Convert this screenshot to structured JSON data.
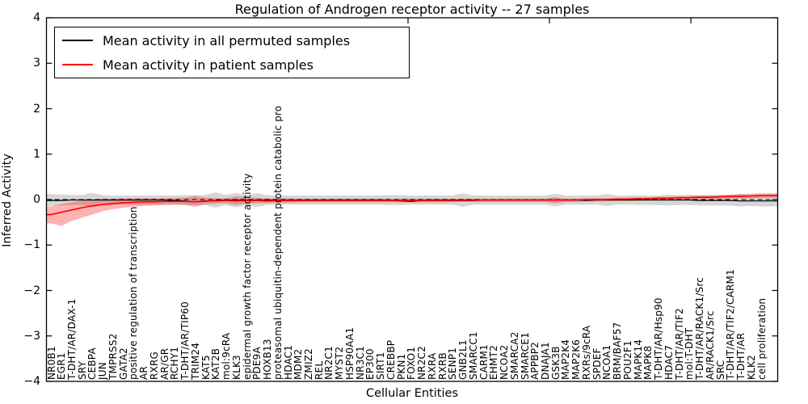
{
  "title": "Regulation of Androgen receptor activity -- 27 samples",
  "legend": {
    "items": [
      {
        "label": "Mean activity in all permuted samples",
        "color": "#000000"
      },
      {
        "label": "Mean activity in patient samples",
        "color": "#ff0000"
      }
    ]
  },
  "chart_data": {
    "type": "line",
    "title": "Regulation of Androgen receptor activity -- 27 samples",
    "xlabel": "Cellular Entities",
    "ylabel": "Inferred Activity",
    "ylim": [
      -4,
      4
    ],
    "yticks": [
      -4,
      -3,
      -2,
      -1,
      0,
      1,
      2,
      3,
      4
    ],
    "grid": false,
    "legend_position": "upper left",
    "background": "#ffffff",
    "zero_line": {
      "style": "dashed",
      "color": "#000000"
    },
    "categories": [
      "NR0B1",
      "EGR1",
      "T-DHT/AR/DAX-1",
      "SRY",
      "CEBPA",
      "JUN",
      "TMPRSS2",
      "GATA2",
      "positive regulation of transcription",
      "AR",
      "RXRG",
      "AR/GR",
      "RCHY1",
      "T-DHT/AR/TIP60",
      "TRIM24",
      "KAT5",
      "KAT2B",
      "mol:9cRA",
      "KLK3",
      "epidermal growth factor receptor activity",
      "PDE9A",
      "HOXB13",
      "proteasomal ubiquitin-dependent protein catabolic pro",
      "HDAC1",
      "MDM2",
      "ZMIZ2",
      "REL",
      "NR2C1",
      "MYST2",
      "HSP90AA1",
      "NR3C1",
      "EP300",
      "SIRT1",
      "CREBBP",
      "PKN1",
      "FOXO1",
      "NR2C2",
      "RXRA",
      "RXRB",
      "SENP1",
      "GNB2L1",
      "SMARCC1",
      "CARM1",
      "EHMT2",
      "NCOA2",
      "SMARCA2",
      "SMARCE1",
      "APPBP2",
      "DNAJA1",
      "GSK3B",
      "MAP2K4",
      "MAP2K6",
      "RXRs/9cRA",
      "SPDEF",
      "NCOA1",
      "BRM/BAF57",
      "POU2F1",
      "MAPK14",
      "MAPK8",
      "T-DHT/AR/Hsp90",
      "HDAC7",
      "T-DHT/AR/TIF2",
      "mol:T-DHT",
      "T-DHT/AR/RACK1/Src",
      "AR/RACK1/Src",
      "SRC",
      "T-DHT/AR/TIF2/CARM1",
      "T-DHT/AR",
      "KLK2",
      "cell proliferation"
    ],
    "series": [
      {
        "name": "Mean activity in all permuted samples",
        "color": "#000000",
        "values": [
          -0.02,
          -0.02,
          -0.01,
          -0.01,
          -0.01,
          -0.01,
          -0.01,
          -0.01,
          -0.01,
          -0.01,
          -0.01,
          -0.01,
          -0.02,
          -0.03,
          -0.05,
          -0.04,
          -0.02,
          -0.01,
          -0.01,
          -0.01,
          -0.01,
          -0.01,
          -0.01,
          -0.01,
          -0.01,
          -0.01,
          -0.01,
          -0.01,
          -0.01,
          -0.01,
          -0.01,
          -0.01,
          -0.01,
          -0.02,
          -0.03,
          -0.04,
          -0.02,
          -0.01,
          -0.01,
          -0.01,
          -0.01,
          -0.01,
          -0.01,
          -0.01,
          -0.01,
          -0.01,
          -0.01,
          -0.01,
          -0.01,
          -0.01,
          -0.01,
          -0.01,
          -0.02,
          -0.01,
          -0.01,
          -0.01,
          -0.01,
          -0.01,
          -0.01,
          -0.01,
          -0.01,
          -0.01,
          -0.01,
          -0.02,
          -0.02,
          -0.02,
          -0.02,
          -0.03,
          -0.03,
          -0.03
        ]
      },
      {
        "name": "Mean activity in patient samples",
        "color": "#ff0000",
        "values": [
          -0.33,
          -0.28,
          -0.23,
          -0.18,
          -0.14,
          -0.11,
          -0.09,
          -0.07,
          -0.06,
          -0.05,
          -0.05,
          -0.04,
          -0.04,
          -0.04,
          -0.05,
          -0.03,
          -0.03,
          -0.02,
          -0.03,
          -0.02,
          -0.02,
          -0.03,
          -0.02,
          -0.02,
          -0.02,
          -0.02,
          -0.02,
          -0.02,
          -0.02,
          -0.02,
          -0.02,
          -0.02,
          -0.02,
          -0.02,
          -0.02,
          -0.02,
          -0.02,
          -0.02,
          -0.02,
          -0.02,
          -0.02,
          -0.02,
          -0.01,
          -0.01,
          -0.01,
          -0.01,
          -0.01,
          -0.01,
          -0.01,
          -0.01,
          -0.01,
          -0.01,
          0,
          0,
          0,
          0.01,
          0.01,
          0.02,
          0.02,
          0.03,
          0.03,
          0.04,
          0.04,
          0.05,
          0.05,
          0.06,
          0.07,
          0.07,
          0.08,
          0.09
        ]
      }
    ],
    "bands": [
      {
        "name": "permuted samples range",
        "color": "#808080",
        "opacity": 0.32,
        "upper": [
          0.12,
          0.11,
          0.1,
          0.1,
          0.15,
          0.1,
          0.09,
          0.09,
          0.09,
          0.09,
          0.09,
          0.09,
          0.09,
          0.1,
          0.1,
          0.1,
          0.16,
          0.1,
          0.15,
          0.1,
          0.14,
          0.1,
          0.09,
          0.09,
          0.09,
          0.09,
          0.09,
          0.09,
          0.09,
          0.09,
          0.09,
          0.09,
          0.09,
          0.1,
          0.1,
          0.09,
          0.09,
          0.09,
          0.09,
          0.09,
          0.14,
          0.09,
          0.09,
          0.09,
          0.09,
          0.09,
          0.09,
          0.09,
          0.09,
          0.13,
          0.09,
          0.09,
          0.09,
          0.09,
          0.12,
          0.09,
          0.09,
          0.09,
          0.09,
          0.09,
          0.11,
          0.1,
          0.1,
          0.1,
          0.1,
          0.1,
          0.1,
          0.12,
          0.1,
          0.1
        ],
        "lower": [
          -0.14,
          -0.13,
          -0.12,
          -0.12,
          -0.17,
          -0.12,
          -0.11,
          -0.11,
          -0.11,
          -0.11,
          -0.11,
          -0.11,
          -0.11,
          -0.12,
          -0.12,
          -0.12,
          -0.18,
          -0.12,
          -0.17,
          -0.12,
          -0.16,
          -0.12,
          -0.11,
          -0.11,
          -0.11,
          -0.11,
          -0.11,
          -0.11,
          -0.11,
          -0.11,
          -0.11,
          -0.11,
          -0.11,
          -0.12,
          -0.12,
          -0.11,
          -0.11,
          -0.11,
          -0.11,
          -0.11,
          -0.16,
          -0.11,
          -0.11,
          -0.11,
          -0.11,
          -0.11,
          -0.11,
          -0.11,
          -0.11,
          -0.15,
          -0.11,
          -0.11,
          -0.11,
          -0.11,
          -0.14,
          -0.11,
          -0.11,
          -0.12,
          -0.12,
          -0.12,
          -0.13,
          -0.12,
          -0.12,
          -0.13,
          -0.13,
          -0.13,
          -0.13,
          -0.15,
          -0.14,
          -0.15
        ]
      },
      {
        "name": "patient samples range",
        "color": "#ff0000",
        "opacity": 0.3,
        "upper": [
          -0.15,
          -0.1,
          -0.06,
          -0.02,
          0,
          0.02,
          0.02,
          0.03,
          0.03,
          0.03,
          0.03,
          0.03,
          0.03,
          0.04,
          0.08,
          0.04,
          0.03,
          0.03,
          0.07,
          0.05,
          0.04,
          0.03,
          0.03,
          0.03,
          0.02,
          0.02,
          0.02,
          0.02,
          0.02,
          0.02,
          0.02,
          0.02,
          0.02,
          0.02,
          0.02,
          0.02,
          0.02,
          0.02,
          0.02,
          0.02,
          0.02,
          0.02,
          0.02,
          0.02,
          0.02,
          0.02,
          0.02,
          0.02,
          0.02,
          0.05,
          0.02,
          0.02,
          0.03,
          0.03,
          0.03,
          0.04,
          0.04,
          0.05,
          0.05,
          0.06,
          0.06,
          0.07,
          0.08,
          0.09,
          0.09,
          0.1,
          0.11,
          0.12,
          0.13,
          0.14
        ],
        "lower": [
          -0.52,
          -0.58,
          -0.47,
          -0.4,
          -0.33,
          -0.26,
          -0.21,
          -0.18,
          -0.16,
          -0.14,
          -0.13,
          -0.12,
          -0.11,
          -0.11,
          -0.16,
          -0.1,
          -0.09,
          -0.08,
          -0.12,
          -0.09,
          -0.08,
          -0.08,
          -0.07,
          -0.07,
          -0.06,
          -0.06,
          -0.06,
          -0.06,
          -0.06,
          -0.06,
          -0.06,
          -0.06,
          -0.06,
          -0.06,
          -0.06,
          -0.06,
          -0.06,
          -0.06,
          -0.06,
          -0.06,
          -0.05,
          -0.05,
          -0.05,
          -0.05,
          -0.05,
          -0.05,
          -0.05,
          -0.05,
          -0.05,
          -0.08,
          -0.05,
          -0.05,
          -0.04,
          -0.04,
          -0.04,
          -0.03,
          -0.03,
          -0.02,
          -0.02,
          -0.01,
          -0.01,
          0,
          0,
          0.01,
          0.01,
          0.02,
          0.02,
          0.03,
          0.03,
          0.04
        ]
      }
    ]
  }
}
